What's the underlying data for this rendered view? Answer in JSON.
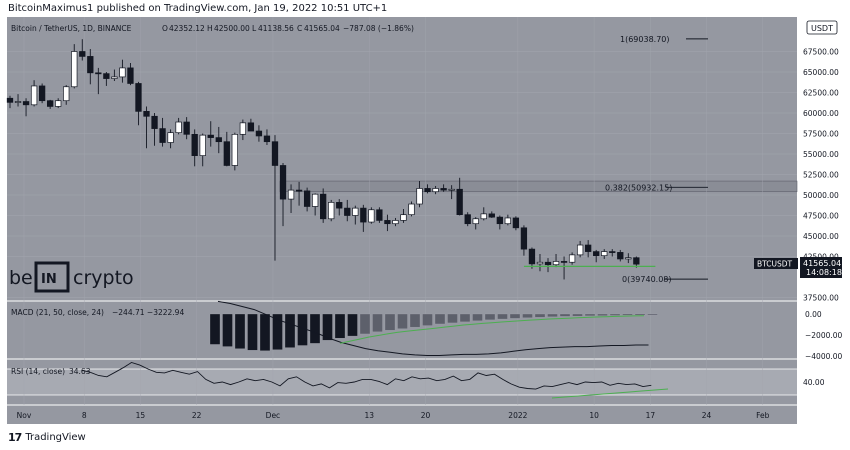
{
  "header": {
    "publish_line": "BitcoinMaximus1 published on TradingView.com, Jan 19, 2022 10:51 UTC+1"
  },
  "symbol_bar": {
    "name": "Bitcoin / TetherUS, 1D, BINANCE",
    "o_label": "O",
    "o_value": "42352.12",
    "h_label": "H",
    "h_value": "42500.00",
    "l_label": "L",
    "l_value": "41138.56",
    "c_label": "C",
    "c_value": "41565.04",
    "change": "−787.08 (−1.86%)"
  },
  "currency_badge": "USDT",
  "watermark": {
    "left": "be",
    "mid": "IN",
    "right": "crypto"
  },
  "price_tag": {
    "symbol": "BTCUSDT",
    "price": "41565.04",
    "countdown": "14:08:18"
  },
  "fib_levels": [
    {
      "label": "1(69038.70)",
      "value": 69038.7
    },
    {
      "label": "0.382(50932.15)",
      "value": 50932.15
    },
    {
      "label": "0(39740.08)",
      "value": 39740.08
    }
  ],
  "macd_label": "MACD (21, 50, close, 24)",
  "macd_values": "−244.71  −3222.94",
  "rsi_label": "RSI (14, close)",
  "rsi_value": "34.63",
  "footer": {
    "brand": "TradingView"
  },
  "colors": {
    "background": "#9598a1",
    "panel_border": "#ffffff",
    "candle_up": "#ffffff",
    "candle_down": "#131722",
    "support": "#4caf50",
    "trendline": "#4caf50",
    "resistance_band": "#8a8d96",
    "text": "#131722"
  },
  "chart_data": [
    {
      "type": "candlestick",
      "title": "Bitcoin / TetherUS, 1D, BINANCE",
      "x_tick_labels": [
        "Nov",
        "8",
        "15",
        "22",
        "Dec",
        "13",
        "20",
        "2022",
        "10",
        "17",
        "24",
        "Feb"
      ],
      "y_tick_labels": [
        "67500.00",
        "65000.00",
        "62500.00",
        "60000.00",
        "57500.00",
        "55000.00",
        "52500.00",
        "50000.00",
        "47500.00",
        "45000.00",
        "42500.00",
        "37500.00"
      ],
      "ylim": [
        36500,
        70500
      ],
      "resistance_band": [
        50400,
        51700
      ],
      "support_line": 41300,
      "candles": [
        [
          61800,
          62100,
          60600,
          61300
        ],
        [
          61300,
          62300,
          60800,
          61400
        ],
        [
          61400,
          61800,
          59600,
          61000
        ],
        [
          61000,
          64000,
          60800,
          63300
        ],
        [
          63300,
          63600,
          61200,
          61500
        ],
        [
          61500,
          61600,
          60500,
          60800
        ],
        [
          60800,
          61800,
          60600,
          61500
        ],
        [
          61500,
          63400,
          61000,
          63200
        ],
        [
          63200,
          68400,
          63000,
          67500
        ],
        [
          67500,
          69000,
          66400,
          66900
        ],
        [
          66900,
          67800,
          63500,
          64900
        ],
        [
          64900,
          65500,
          62300,
          64800
        ],
        [
          64800,
          65000,
          63300,
          64200
        ],
        [
          64200,
          65300,
          63900,
          64400
        ],
        [
          64400,
          66500,
          63700,
          65500
        ],
        [
          65500,
          66100,
          63400,
          63600
        ],
        [
          63600,
          63800,
          58500,
          60200
        ],
        [
          60200,
          60800,
          55700,
          59600
        ],
        [
          59600,
          60000,
          56000,
          58100
        ],
        [
          58100,
          59400,
          55900,
          56400
        ],
        [
          56400,
          58000,
          55700,
          57600
        ],
        [
          57600,
          59400,
          57400,
          58900
        ],
        [
          58900,
          59500,
          56800,
          57400
        ],
        [
          57400,
          58000,
          53500,
          54800
        ],
        [
          54800,
          57500,
          53500,
          57300
        ],
        [
          57300,
          59000,
          55900,
          57000
        ],
        [
          57000,
          58300,
          55100,
          56500
        ],
        [
          56500,
          57700,
          53500,
          53600
        ],
        [
          53600,
          57600,
          53000,
          57400
        ],
        [
          57400,
          59200,
          56700,
          58800
        ],
        [
          58800,
          59300,
          57800,
          57800
        ],
        [
          57800,
          58500,
          56500,
          57200
        ],
        [
          57200,
          58000,
          56100,
          56500
        ],
        [
          56500,
          57300,
          42000,
          53600
        ],
        [
          53600,
          53900,
          46200,
          49500
        ],
        [
          49500,
          51300,
          47800,
          50600
        ],
        [
          50600,
          51600,
          48700,
          50500
        ],
        [
          50500,
          50900,
          48000,
          48600
        ],
        [
          48600,
          50200,
          47500,
          50100
        ],
        [
          50100,
          50800,
          46600,
          47100
        ],
        [
          47100,
          49400,
          46800,
          49100
        ],
        [
          49100,
          49500,
          47500,
          48400
        ],
        [
          48400,
          49400,
          46800,
          47500
        ],
        [
          47500,
          48700,
          46400,
          48400
        ],
        [
          48400,
          48800,
          45500,
          46700
        ],
        [
          46700,
          48500,
          46500,
          48200
        ],
        [
          48200,
          48500,
          46600,
          46900
        ],
        [
          46900,
          47600,
          45600,
          46500
        ],
        [
          46500,
          47200,
          46200,
          46900
        ],
        [
          46900,
          48300,
          46600,
          47600
        ],
        [
          47600,
          49200,
          47400,
          48900
        ],
        [
          48900,
          51700,
          48500,
          50800
        ],
        [
          50800,
          51300,
          50200,
          50400
        ],
        [
          50400,
          51100,
          50100,
          50800
        ],
        [
          50800,
          51300,
          50400,
          50600
        ],
        [
          50600,
          51200,
          49500,
          50700
        ],
        [
          50700,
          52100,
          47500,
          47600
        ],
        [
          47600,
          47900,
          46200,
          46500
        ],
        [
          46500,
          47300,
          45800,
          47100
        ],
        [
          47100,
          48500,
          46900,
          47700
        ],
        [
          47700,
          48000,
          47200,
          47300
        ],
        [
          47300,
          47500,
          45800,
          46500
        ],
        [
          46500,
          47600,
          46300,
          47200
        ],
        [
          47200,
          47400,
          45700,
          46000
        ],
        [
          46000,
          46300,
          42600,
          43400
        ],
        [
          43400,
          43600,
          41000,
          41600
        ],
        [
          41600,
          42800,
          40700,
          41800
        ],
        [
          41800,
          42300,
          40600,
          41500
        ],
        [
          41500,
          42800,
          41200,
          41900
        ],
        [
          41900,
          42500,
          39700,
          41800
        ],
        [
          41800,
          43000,
          41500,
          42700
        ],
        [
          42700,
          44400,
          42400,
          43900
        ],
        [
          43900,
          44500,
          42400,
          43100
        ],
        [
          43100,
          43300,
          41800,
          42600
        ],
        [
          42600,
          43400,
          42200,
          43100
        ],
        [
          43100,
          43400,
          42500,
          43000
        ],
        [
          43000,
          43300,
          41900,
          42200
        ],
        [
          42200,
          42900,
          41700,
          42352
        ],
        [
          42352,
          42500,
          41138,
          41565
        ]
      ]
    },
    {
      "type": "bar",
      "title": "MACD (21, 50, close, 24)",
      "y_tick_labels": [
        "0.00",
        "−2000.00",
        "−4000.00"
      ],
      "ylim": [
        -5000,
        1300
      ],
      "histogram": [
        -2900,
        -3100,
        -3300,
        -3450,
        -3500,
        -3400,
        -3200,
        -3000,
        -2800,
        -2500,
        -2300,
        -2100,
        -1900,
        -1700,
        -1550,
        -1400,
        -1250,
        -1100,
        -950,
        -850,
        -750,
        -650,
        -560,
        -480,
        -420,
        -360,
        -310,
        -270,
        -230,
        -200,
        -180,
        -160,
        -140,
        -120,
        -110,
        -100
      ],
      "macd_line": [
        1200,
        1000,
        700,
        400,
        -100,
        -600,
        -1000,
        -1400,
        -1800,
        -2300,
        -2700,
        -3000,
        -3300,
        -3500,
        -3650,
        -3800,
        -3900,
        -3950,
        -3950,
        -3900,
        -3850,
        -3850,
        -3800,
        -3700,
        -3550,
        -3400,
        -3300,
        -3200,
        -3150,
        -3100,
        -3100,
        -3050,
        -3000,
        -3000,
        -2950,
        -2950
      ],
      "signal_line": [
        -3000,
        -3000,
        -2900,
        -2800,
        -2600,
        -2400,
        -2200,
        -2050,
        -1900,
        -1750,
        -1650,
        -1550,
        -1450,
        -1350,
        -1250,
        -1150,
        -1050,
        -980,
        -900,
        -830,
        -760,
        -700,
        -640,
        -580,
        -530,
        -480,
        -440,
        -400,
        -360,
        -320,
        -290,
        -260,
        -230,
        -200,
        -180,
        -160
      ]
    },
    {
      "type": "line",
      "title": "RSI (14, close)",
      "y_tick_labels": [
        "40.00"
      ],
      "ylim": [
        0,
        100
      ],
      "rsi": [
        58,
        55,
        50,
        48,
        55,
        62,
        70,
        66,
        60,
        55,
        54,
        58,
        55,
        52,
        56,
        44,
        38,
        40,
        36,
        40,
        45,
        42,
        44,
        40,
        34,
        45,
        48,
        40,
        34,
        37,
        31,
        39,
        38,
        40,
        44,
        44,
        41,
        36,
        45,
        42,
        48,
        45,
        46,
        42,
        44,
        49,
        42,
        44,
        54,
        50,
        52,
        44,
        37,
        32,
        30,
        29,
        34,
        33,
        36,
        39,
        36,
        40,
        39,
        40,
        35,
        38,
        36,
        37,
        33,
        35
      ]
    }
  ]
}
